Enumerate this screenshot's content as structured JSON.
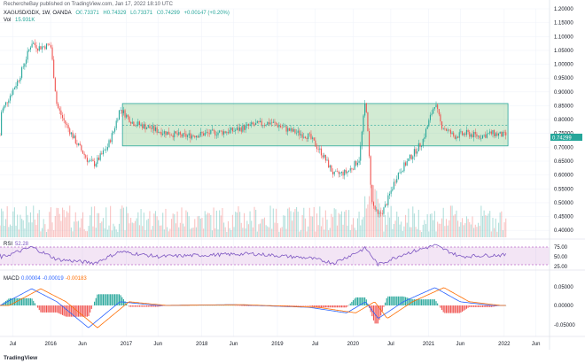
{
  "header": {
    "published": "RechercheBay published on TradingView.com, Jan 17, 2022 18:10 UTC",
    "symbol": "XAGUSD/GDX, 1W, OANDA",
    "ohlc_o": "O0.73371",
    "ohlc_h": "H0.74329",
    "ohlc_l": "L0.73371",
    "ohlc_c": "C0.74299",
    "change": "+0.00147 (+0.20%)",
    "vol_label": "Vol",
    "vol_value": "15.931K",
    "colors": {
      "up": "#26a69a",
      "down": "#ef5350",
      "value": "#26a69a"
    }
  },
  "rsi": {
    "label": "RSI",
    "value": "52.28",
    "levels": [
      "75.00",
      "50.00",
      "25.00"
    ]
  },
  "macd": {
    "label": "MACD",
    "v1": "0.00004",
    "v2": "-0.00019",
    "v3": "-0.00183",
    "levels": [
      "0.05000",
      "0.00000",
      "-0.05000"
    ]
  },
  "x_axis": {
    "labels": [
      "Jul",
      "2016",
      "Jun",
      "2017",
      "Jun",
      "2018",
      "Jun",
      "2019",
      "Jul",
      "2020",
      "Jul",
      "2021",
      "Jun",
      "2022",
      "Jun"
    ]
  },
  "logo": "TradingView",
  "chart_data": {
    "type": "candlestick",
    "title": "XAGUSD/GDX, 1W, OANDA",
    "ylim": [
      0.375,
      1.2
    ],
    "y_ticks": [
      "1.20000",
      "1.15000",
      "1.10000",
      "1.05000",
      "1.00000",
      "0.95000",
      "0.90000",
      "0.85000",
      "0.80000",
      "0.75000",
      "0.70000",
      "0.65000",
      "0.60000",
      "0.55000",
      "0.50000",
      "0.45000",
      "0.40000"
    ],
    "last_price_label": "0.74299",
    "box": {
      "top": 0.858,
      "bottom": 0.705,
      "mid": 0.78,
      "from": "Dec 2016",
      "to": "Jan 2022"
    },
    "path": [
      [
        "2015-05",
        0.82
      ],
      [
        "2015-08",
        0.95
      ],
      [
        "2015-10",
        1.08
      ],
      [
        "2015-11",
        1.06
      ],
      [
        "2016-01",
        1.07
      ],
      [
        "2016-02",
        0.85
      ],
      [
        "2016-03",
        0.8
      ],
      [
        "2016-05",
        0.72
      ],
      [
        "2016-07",
        0.65
      ],
      [
        "2016-08",
        0.64
      ],
      [
        "2016-10",
        0.7
      ],
      [
        "2016-11",
        0.76
      ],
      [
        "2016-12",
        0.84
      ],
      [
        "2017-02",
        0.79
      ],
      [
        "2017-06",
        0.76
      ],
      [
        "2017-10",
        0.74
      ],
      [
        "2018-02",
        0.75
      ],
      [
        "2018-06",
        0.76
      ],
      [
        "2018-09",
        0.78
      ],
      [
        "2018-12",
        0.79
      ],
      [
        "2019-03",
        0.76
      ],
      [
        "2019-06",
        0.74
      ],
      [
        "2019-08",
        0.68
      ],
      [
        "2019-10",
        0.6
      ],
      [
        "2019-12",
        0.61
      ],
      [
        "2020-01",
        0.63
      ],
      [
        "2020-02",
        0.66
      ],
      [
        "2020-03",
        0.88
      ],
      [
        "2020-04",
        0.5
      ],
      [
        "2020-05",
        0.45
      ],
      [
        "2020-06",
        0.48
      ],
      [
        "2020-08",
        0.6
      ],
      [
        "2020-10",
        0.66
      ],
      [
        "2020-12",
        0.72
      ],
      [
        "2021-02",
        0.86
      ],
      [
        "2021-03",
        0.78
      ],
      [
        "2021-05",
        0.74
      ],
      [
        "2021-07",
        0.75
      ],
      [
        "2021-09",
        0.74
      ],
      [
        "2021-11",
        0.75
      ],
      [
        "2022-01",
        0.743
      ]
    ],
    "rsi_path": [
      [
        "2015-05",
        45
      ],
      [
        "2015-10",
        75
      ],
      [
        "2016-02",
        40
      ],
      [
        "2016-08",
        30
      ],
      [
        "2016-12",
        62
      ],
      [
        "2017-06",
        48
      ],
      [
        "2018-01",
        52
      ],
      [
        "2018-09",
        56
      ],
      [
        "2019-06",
        44
      ],
      [
        "2019-10",
        30
      ],
      [
        "2020-03",
        72
      ],
      [
        "2020-05",
        25
      ],
      [
        "2020-09",
        55
      ],
      [
        "2021-02",
        80
      ],
      [
        "2021-06",
        48
      ],
      [
        "2021-11",
        52
      ],
      [
        "2022-01",
        52.28
      ]
    ],
    "macd_path": [
      [
        "2015-05",
        0.0
      ],
      [
        "2015-10",
        0.045
      ],
      [
        "2016-02",
        0.01
      ],
      [
        "2016-07",
        -0.06
      ],
      [
        "2016-12",
        0.01
      ],
      [
        "2017-06",
        0.0
      ],
      [
        "2018-06",
        0.002
      ],
      [
        "2019-06",
        -0.005
      ],
      [
        "2019-12",
        -0.02
      ],
      [
        "2020-03",
        0.01
      ],
      [
        "2020-05",
        -0.035
      ],
      [
        "2020-09",
        0.01
      ],
      [
        "2021-02",
        0.048
      ],
      [
        "2021-06",
        0.01
      ],
      [
        "2021-11",
        0.0
      ],
      [
        "2022-01",
        4e-05
      ]
    ]
  }
}
